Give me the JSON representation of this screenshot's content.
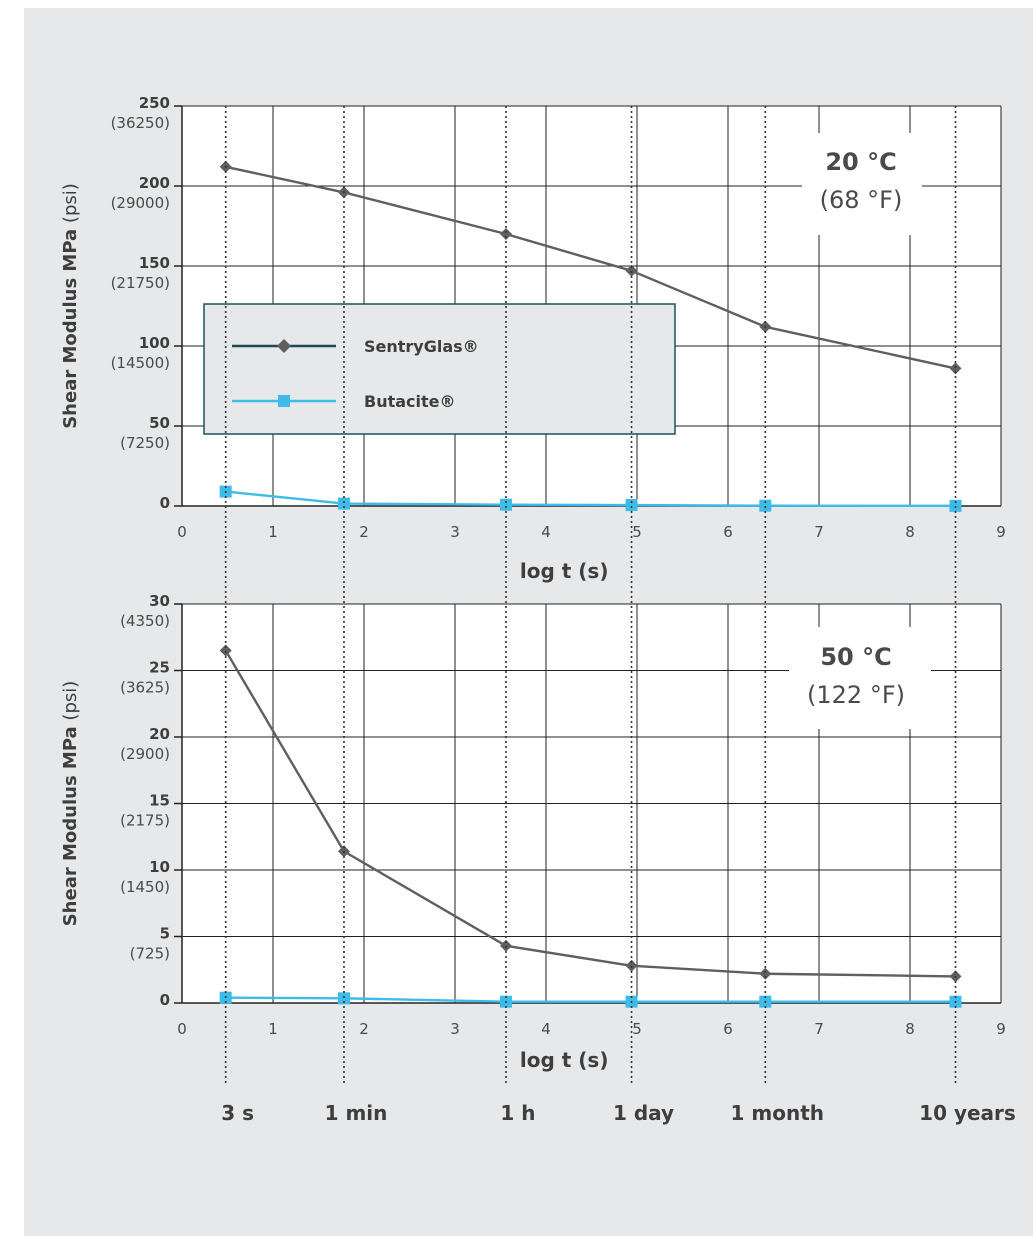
{
  "colors": {
    "sentry": "#5f5f5f",
    "butacite": "#3dbbe9",
    "frame": "#222222"
  },
  "legend": {
    "sentry_label": "SentryGlas®",
    "butacite_label": "Butacite®"
  },
  "time_marks": [
    {
      "x": 0.48,
      "label": "3 s"
    },
    {
      "x": 1.78,
      "label": "1 min"
    },
    {
      "x": 3.56,
      "label": "1 h"
    },
    {
      "x": 4.94,
      "label": "1 day"
    },
    {
      "x": 6.41,
      "label": "1 month"
    },
    {
      "x": 8.5,
      "label": "10 years"
    }
  ],
  "chart_data": [
    {
      "type": "line",
      "xlabel": "log t (s)",
      "ylabel": "Shear Modulus MPa (psi)",
      "annotation": [
        "20 °C",
        "(68 °F)"
      ],
      "xlim": [
        0,
        9
      ],
      "ylim": [
        0,
        250
      ],
      "x_ticks": [
        "0",
        "1",
        "2",
        "3",
        "4",
        "5",
        "6",
        "7",
        "8",
        "9"
      ],
      "y_ticks": [
        {
          "value": 0,
          "mpa": "0",
          "psi": ""
        },
        {
          "value": 50,
          "mpa": "50",
          "psi": "(7250)"
        },
        {
          "value": 100,
          "mpa": "100",
          "psi": "(14500)"
        },
        {
          "value": 150,
          "mpa": "150",
          "psi": "(21750)"
        },
        {
          "value": 200,
          "mpa": "200",
          "psi": "(29000)"
        },
        {
          "value": 250,
          "mpa": "250",
          "psi": "(36250)"
        }
      ],
      "series": [
        {
          "name": "SentryGlas®",
          "marker": "diamond",
          "x": [
            0.48,
            1.78,
            3.56,
            4.94,
            6.41,
            8.5
          ],
          "y": [
            212,
            196,
            170,
            147,
            112,
            86
          ]
        },
        {
          "name": "Butacite®",
          "marker": "square",
          "x": [
            0.48,
            1.78,
            3.56,
            4.94,
            6.41,
            8.5
          ],
          "y": [
            9,
            1.5,
            0.8,
            0.6,
            0.2,
            0.1
          ]
        }
      ]
    },
    {
      "type": "line",
      "xlabel": "log t (s)",
      "ylabel": "Shear Modulus MPa (psi)",
      "annotation": [
        "50 °C",
        "(122 °F)"
      ],
      "xlim": [
        0,
        9
      ],
      "ylim": [
        0,
        30
      ],
      "x_ticks": [
        "0",
        "1",
        "2",
        "3",
        "4",
        "5",
        "6",
        "7",
        "8",
        "9"
      ],
      "y_ticks": [
        {
          "value": 0,
          "mpa": "0",
          "psi": ""
        },
        {
          "value": 5,
          "mpa": "5",
          "psi": "(725)"
        },
        {
          "value": 10,
          "mpa": "10",
          "psi": "(1450)"
        },
        {
          "value": 15,
          "mpa": "15",
          "psi": "(2175)"
        },
        {
          "value": 20,
          "mpa": "20",
          "psi": "(2900)"
        },
        {
          "value": 25,
          "mpa": "25",
          "psi": "(3625)"
        },
        {
          "value": 30,
          "mpa": "30",
          "psi": "(4350)"
        }
      ],
      "series": [
        {
          "name": "SentryGlas®",
          "marker": "diamond",
          "x": [
            0.48,
            1.78,
            3.56,
            4.94,
            6.41,
            8.5
          ],
          "y": [
            26.5,
            11.4,
            4.3,
            2.8,
            2.2,
            2.0
          ]
        },
        {
          "name": "Butacite®",
          "marker": "square",
          "x": [
            0.48,
            1.78,
            3.56,
            4.94,
            6.41,
            8.5
          ],
          "y": [
            0.4,
            0.35,
            0.1,
            0.1,
            0.1,
            0.1
          ]
        }
      ]
    }
  ]
}
